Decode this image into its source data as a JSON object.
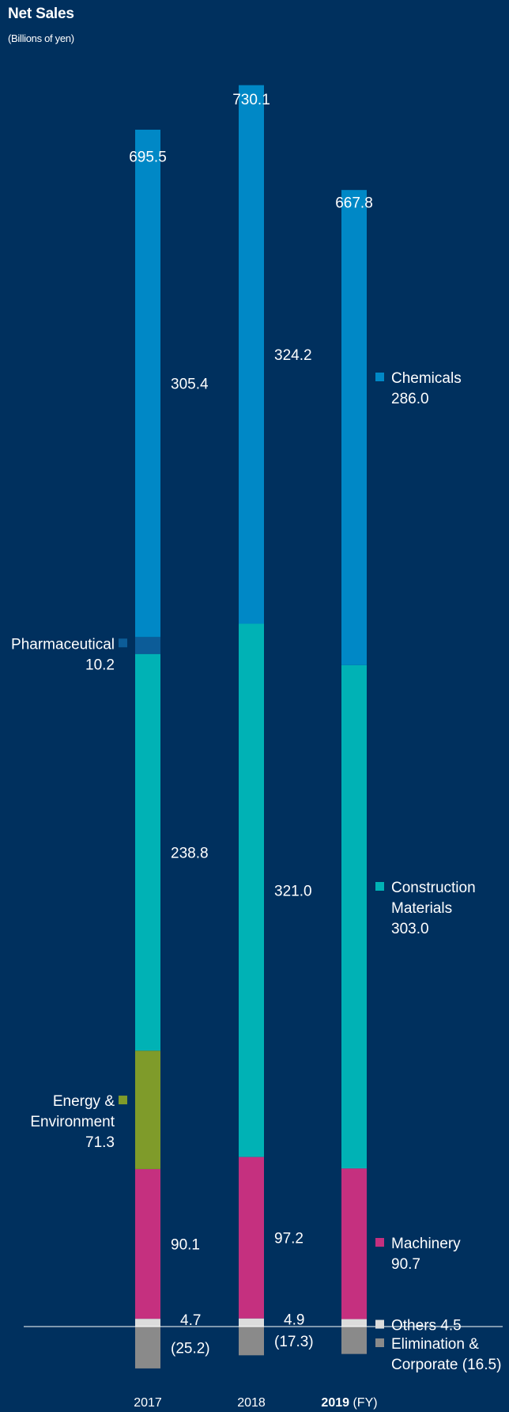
{
  "chart_data": {
    "type": "bar",
    "stacked": true,
    "title": "Net Sales",
    "subtitle": "(Billions of yen)",
    "categories": [
      "2017",
      "2018",
      "2019"
    ],
    "x_unit_suffix": "(FY)",
    "highlighted_category": "2019",
    "totals": [
      695.5,
      730.1,
      667.8
    ],
    "totals_labels": [
      "695.5",
      "730.1",
      "667.8"
    ],
    "series": [
      {
        "name": "Elimination & Corporate",
        "color": "#8a8a8a",
        "values": [
          -25.2,
          -17.3,
          -16.5
        ],
        "value_labels": [
          "(25.2)",
          "(17.3)",
          ""
        ]
      },
      {
        "name": "Others",
        "color": "#dcdcdc",
        "values": [
          4.7,
          4.9,
          4.5
        ],
        "value_labels": [
          "4.7",
          "4.9",
          ""
        ]
      },
      {
        "name": "Machinery",
        "color": "#c5307f",
        "values": [
          90.1,
          97.2,
          90.7
        ],
        "value_labels": [
          "90.1",
          "97.2",
          ""
        ]
      },
      {
        "name": "Energy & Environment",
        "color": "#7f9b2a",
        "values": [
          71.3,
          0,
          0
        ],
        "value_labels": [
          "",
          "",
          ""
        ]
      },
      {
        "name": "Construction Materials",
        "color": "#00b2b5",
        "values": [
          238.8,
          321.0,
          303.0
        ],
        "value_labels": [
          "238.8",
          "321.0",
          ""
        ]
      },
      {
        "name": "Pharmaceutical",
        "color": "#0c5c98",
        "values": [
          10.2,
          0,
          0
        ],
        "value_labels": [
          "",
          "",
          ""
        ]
      },
      {
        "name": "Chemicals",
        "color": "#0088c6",
        "values": [
          305.4,
          324.2,
          286.0
        ],
        "value_labels": [
          "305.4",
          "324.2",
          ""
        ]
      }
    ],
    "legend": [
      {
        "series": "Chemicals",
        "lines": [
          "Chemicals",
          "286.0"
        ],
        "side": "right"
      },
      {
        "series": "Construction Materials",
        "lines": [
          "Construction",
          "Materials",
          "303.0"
        ],
        "side": "right"
      },
      {
        "series": "Machinery",
        "lines": [
          "Machinery",
          "90.7"
        ],
        "side": "right"
      },
      {
        "series": "Others",
        "lines": [
          "Others 4.5"
        ],
        "side": "right"
      },
      {
        "series": "Elimination & Corporate",
        "lines": [
          "Elimination &",
          "Corporate (16.5)"
        ],
        "side": "right"
      },
      {
        "series": "Pharmaceutical",
        "lines": [
          "Pharmaceutical",
          "10.2"
        ],
        "side": "left"
      },
      {
        "series": "Energy & Environment",
        "lines": [
          "Energy &",
          "Environment",
          "71.3"
        ],
        "side": "left"
      }
    ],
    "baseline_value": 0
  }
}
